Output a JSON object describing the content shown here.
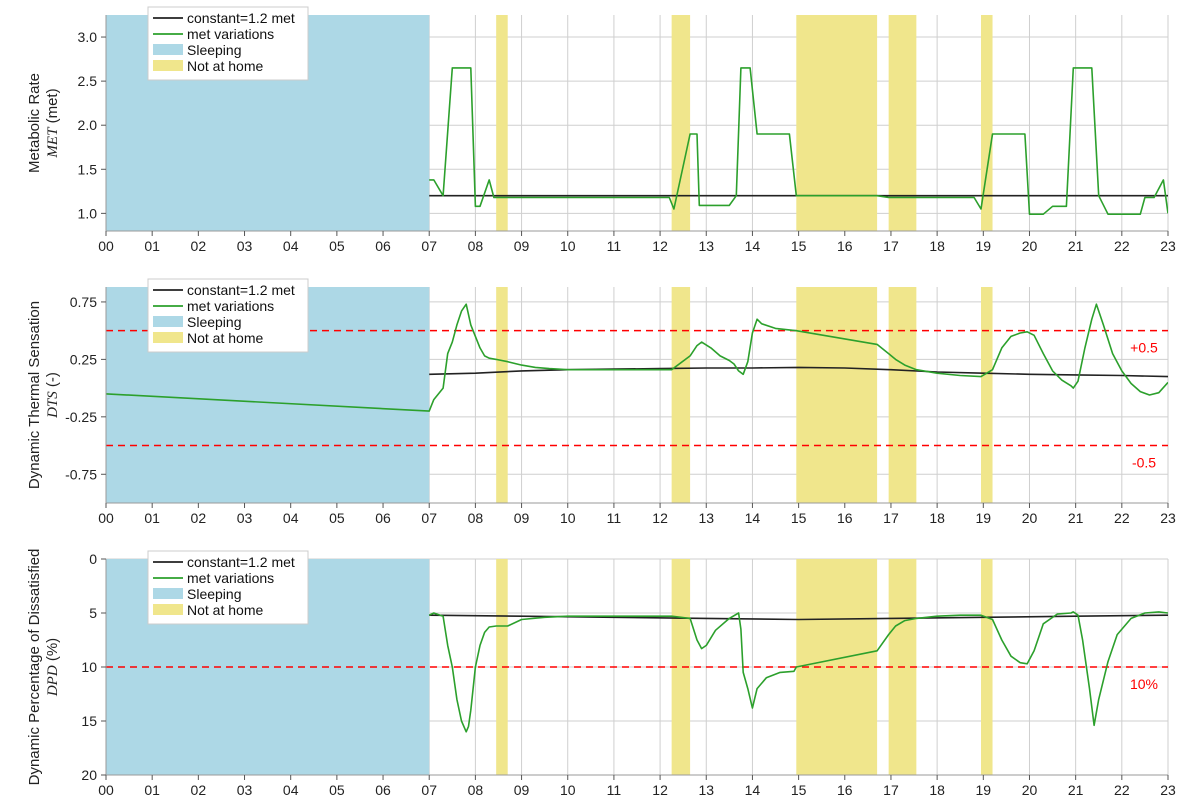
{
  "chart_data": [
    {
      "type": "line",
      "ylabel": "Metabolic Rate",
      "ylabel_symbol": "MET",
      "ylabel_unit": "(met)",
      "x_ticks": [
        "00",
        "01",
        "02",
        "03",
        "04",
        "05",
        "06",
        "07",
        "08",
        "09",
        "10",
        "11",
        "12",
        "13",
        "14",
        "15",
        "16",
        "17",
        "18",
        "19",
        "20",
        "21",
        "22",
        "23"
      ],
      "xlim": [
        0,
        23
      ],
      "ylim": [
        0.8,
        3.25
      ],
      "y_ticks": [
        1.0,
        1.5,
        2.0,
        2.5,
        3.0
      ],
      "y_tick_labels": [
        "1.0",
        "1.5",
        "2.0",
        "2.5",
        "3.0"
      ],
      "y_inverted": false,
      "grid": true,
      "legend_position": "top-left",
      "legend": [
        "constant=1.2 met",
        "met variations",
        "Sleeping",
        "Not at home"
      ],
      "sleeping": [
        [
          0,
          7
        ]
      ],
      "not_at_home": [
        [
          8.45,
          8.7
        ],
        [
          12.25,
          12.65
        ],
        [
          14.95,
          16.7
        ],
        [
          16.95,
          17.55
        ],
        [
          18.95,
          19.2
        ]
      ],
      "series": [
        {
          "name": "constant=1.2 met",
          "color": "#222222",
          "x": [
            7,
            23
          ],
          "y": [
            1.2,
            1.2
          ]
        },
        {
          "name": "met variations",
          "color": "#2ca02c",
          "x": [
            7,
            7.1,
            7.3,
            7.5,
            7.55,
            7.9,
            8.0,
            8.1,
            8.3,
            8.4,
            8.7,
            12.2,
            12.3,
            12.65,
            12.8,
            12.85,
            13.5,
            13.65,
            13.75,
            13.95,
            14.1,
            14.8,
            14.95,
            16.7,
            16.95,
            17.55,
            18.8,
            18.95,
            19.2,
            19.9,
            20.0,
            20.3,
            20.5,
            20.8,
            20.95,
            21.05,
            21.35,
            21.5,
            21.7,
            22.4,
            22.5,
            22.7,
            22.9,
            23.0
          ],
          "y": [
            1.38,
            1.38,
            1.2,
            2.65,
            2.65,
            2.65,
            1.08,
            1.08,
            1.38,
            1.18,
            1.18,
            1.18,
            1.05,
            1.9,
            1.9,
            1.09,
            1.09,
            1.2,
            2.65,
            2.65,
            1.9,
            1.9,
            1.2,
            1.2,
            1.18,
            1.18,
            1.18,
            1.05,
            1.9,
            1.9,
            0.99,
            0.99,
            1.08,
            1.08,
            2.65,
            2.65,
            2.65,
            1.2,
            0.99,
            0.99,
            1.18,
            1.18,
            1.38,
            1.0
          ]
        }
      ]
    },
    {
      "type": "line",
      "ylabel": "Dynamic Thermal Sensation",
      "ylabel_symbol": "DTS",
      "ylabel_unit": "(-)",
      "x_ticks": [
        "00",
        "01",
        "02",
        "03",
        "04",
        "05",
        "06",
        "07",
        "08",
        "09",
        "10",
        "11",
        "12",
        "13",
        "14",
        "15",
        "16",
        "17",
        "18",
        "19",
        "20",
        "21",
        "22",
        "23"
      ],
      "xlim": [
        0,
        23
      ],
      "ylim": [
        -1.0,
        0.88
      ],
      "y_ticks": [
        -0.75,
        -0.25,
        0.25,
        0.75
      ],
      "y_tick_labels": [
        "-0.75",
        "-0.25",
        "0.25",
        "0.75"
      ],
      "y_inverted": false,
      "grid": true,
      "legend_position": "top-left",
      "legend": [
        "constant=1.2 met",
        "met variations",
        "Sleeping",
        "Not at home"
      ],
      "sleeping": [
        [
          0,
          7
        ]
      ],
      "not_at_home": [
        [
          8.45,
          8.7
        ],
        [
          12.25,
          12.65
        ],
        [
          14.95,
          16.7
        ],
        [
          16.95,
          17.55
        ],
        [
          18.95,
          19.2
        ]
      ],
      "hlines": [
        {
          "y": 0.5,
          "label": "+0.5",
          "color": "#ff0000"
        },
        {
          "y": -0.5,
          "label": "-0.5",
          "color": "#ff0000"
        }
      ],
      "series": [
        {
          "name": "constant=1.2 met",
          "color": "#222222",
          "x": [
            7,
            8,
            9,
            10,
            11,
            12,
            13,
            14,
            15,
            16,
            17,
            18,
            19,
            20,
            21,
            22,
            23
          ],
          "y": [
            0.12,
            0.13,
            0.15,
            0.16,
            0.165,
            0.17,
            0.175,
            0.175,
            0.18,
            0.175,
            0.16,
            0.14,
            0.13,
            0.12,
            0.115,
            0.11,
            0.1
          ]
        },
        {
          "name": "met variations",
          "color": "#2ca02c",
          "x": [
            0,
            0.02,
            7,
            7.1,
            7.3,
            7.4,
            7.5,
            7.6,
            7.7,
            7.8,
            7.9,
            8.0,
            8.1,
            8.2,
            8.3,
            8.45,
            8.7,
            9.0,
            9.3,
            9.6,
            10,
            11,
            12.25,
            12.65,
            12.8,
            12.9,
            13.1,
            13.3,
            13.5,
            13.6,
            13.7,
            13.8,
            13.9,
            14.0,
            14.1,
            14.2,
            14.5,
            14.95,
            16.7,
            16.95,
            17.1,
            17.3,
            17.55,
            18,
            18.5,
            18.95,
            19.2,
            19.4,
            19.6,
            19.8,
            19.95,
            20.1,
            20.3,
            20.5,
            20.7,
            20.9,
            20.95,
            21.05,
            21.2,
            21.35,
            21.45,
            21.6,
            21.8,
            22.0,
            22.2,
            22.4,
            22.6,
            22.8,
            23.0
          ],
          "y": [
            -0.05,
            -0.05,
            -0.2,
            -0.1,
            0.0,
            0.3,
            0.4,
            0.55,
            0.67,
            0.73,
            0.55,
            0.45,
            0.35,
            0.28,
            0.26,
            0.25,
            0.23,
            0.2,
            0.18,
            0.17,
            0.16,
            0.16,
            0.16,
            0.28,
            0.37,
            0.4,
            0.35,
            0.28,
            0.24,
            0.21,
            0.15,
            0.12,
            0.23,
            0.48,
            0.6,
            0.56,
            0.52,
            0.5,
            0.38,
            0.3,
            0.25,
            0.2,
            0.16,
            0.13,
            0.11,
            0.1,
            0.16,
            0.35,
            0.45,
            0.48,
            0.49,
            0.46,
            0.3,
            0.15,
            0.07,
            0.02,
            0.0,
            0.06,
            0.35,
            0.6,
            0.73,
            0.55,
            0.3,
            0.15,
            0.04,
            -0.03,
            -0.06,
            -0.04,
            0.05
          ]
        }
      ]
    },
    {
      "type": "line",
      "ylabel": "Dynamic Percentage of Dissatisfied",
      "ylabel_symbol": "DPD",
      "ylabel_unit": "(%)",
      "x_ticks": [
        "00",
        "01",
        "02",
        "03",
        "04",
        "05",
        "06",
        "07",
        "08",
        "09",
        "10",
        "11",
        "12",
        "13",
        "14",
        "15",
        "16",
        "17",
        "18",
        "19",
        "20",
        "21",
        "22",
        "23"
      ],
      "xlim": [
        0,
        23
      ],
      "ylim": [
        0,
        20
      ],
      "y_ticks": [
        0,
        5,
        10,
        15,
        20
      ],
      "y_tick_labels": [
        "0",
        "5",
        "10",
        "15",
        "20"
      ],
      "y_inverted": true,
      "grid": true,
      "legend_position": "top-left",
      "legend": [
        "constant=1.2 met",
        "met variations",
        "Sleeping",
        "Not at home"
      ],
      "sleeping": [
        [
          0,
          7
        ]
      ],
      "not_at_home": [
        [
          8.45,
          8.7
        ],
        [
          12.25,
          12.65
        ],
        [
          14.95,
          16.7
        ],
        [
          16.95,
          17.55
        ],
        [
          18.95,
          19.2
        ]
      ],
      "hlines": [
        {
          "y": 10,
          "label": "10%",
          "color": "#ff0000"
        }
      ],
      "series": [
        {
          "name": "constant=1.2 met",
          "color": "#222222",
          "x": [
            7,
            9,
            11,
            13,
            15,
            17,
            19,
            21,
            23
          ],
          "y": [
            5.2,
            5.3,
            5.4,
            5.5,
            5.6,
            5.5,
            5.4,
            5.3,
            5.2
          ]
        },
        {
          "name": "met variations",
          "color": "#2ca02c",
          "x": [
            7,
            7.1,
            7.3,
            7.4,
            7.5,
            7.6,
            7.7,
            7.8,
            7.85,
            7.9,
            8.0,
            8.1,
            8.2,
            8.3,
            8.45,
            8.7,
            9.0,
            9.5,
            10,
            11,
            12.25,
            12.65,
            12.8,
            12.9,
            13.0,
            13.2,
            13.5,
            13.7,
            13.75,
            13.8,
            13.9,
            14.0,
            14.1,
            14.3,
            14.6,
            14.9,
            14.95,
            16.7,
            16.95,
            17.1,
            17.3,
            17.55,
            18.0,
            18.5,
            18.95,
            19.2,
            19.4,
            19.6,
            19.8,
            19.95,
            20.1,
            20.3,
            20.6,
            20.9,
            20.95,
            21.05,
            21.15,
            21.3,
            21.4,
            21.5,
            21.7,
            21.9,
            22.2,
            22.5,
            22.8,
            23.0
          ],
          "y": [
            5.2,
            5.0,
            5.3,
            8.0,
            10.0,
            13.0,
            15.0,
            16.0,
            15.5,
            14.0,
            10.0,
            8.0,
            6.8,
            6.3,
            6.2,
            6.2,
            5.6,
            5.4,
            5.3,
            5.3,
            5.3,
            5.5,
            7.5,
            8.3,
            8.0,
            6.6,
            5.5,
            5.0,
            6.5,
            10.5,
            12.0,
            13.8,
            12.0,
            11.0,
            10.5,
            10.4,
            10.0,
            8.5,
            7.0,
            6.2,
            5.7,
            5.5,
            5.3,
            5.2,
            5.2,
            5.6,
            7.5,
            9.0,
            9.6,
            9.7,
            8.5,
            6.0,
            5.1,
            5.0,
            4.9,
            5.2,
            7.5,
            12.0,
            15.4,
            13.0,
            9.5,
            7.0,
            5.5,
            5.0,
            4.9,
            5.0
          ]
        }
      ]
    }
  ]
}
